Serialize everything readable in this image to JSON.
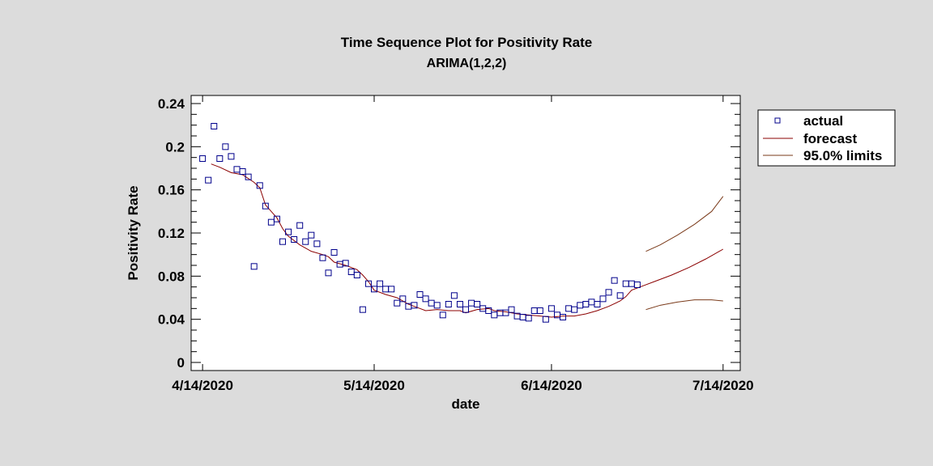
{
  "chart_data": {
    "type": "line",
    "title": "Time Sequence Plot for Positivity Rate",
    "subtitle": "ARIMA(1,2,2)",
    "xlabel": "date",
    "ylabel": "Positivity Rate",
    "x_start_date": "4/14/2020",
    "x_unit": "day",
    "xlim": [
      -2,
      94
    ],
    "ylim": [
      -0.0075,
      0.2475
    ],
    "x_ticks": [
      {
        "day": 0,
        "label": "4/14/2020"
      },
      {
        "day": 30,
        "label": "5/14/2020"
      },
      {
        "day": 61,
        "label": "6/14/2020"
      },
      {
        "day": 91,
        "label": "7/14/2020"
      }
    ],
    "y_ticks": [
      {
        "value": 0,
        "label": "0"
      },
      {
        "value": 0.04,
        "label": "0.04"
      },
      {
        "value": 0.08,
        "label": "0.08"
      },
      {
        "value": 0.12,
        "label": "0.12"
      },
      {
        "value": 0.16,
        "label": "0.16"
      },
      {
        "value": 0.2,
        "label": "0.2"
      },
      {
        "value": 0.24,
        "label": "0.24"
      }
    ],
    "grid": false,
    "legend_position": "right",
    "series": [
      {
        "name": "actual",
        "kind": "scatter",
        "color": "#00008b",
        "start_day": 0,
        "values": [
          0.189,
          0.169,
          0.219,
          0.189,
          0.2,
          0.191,
          0.179,
          0.177,
          0.172,
          0.089,
          0.164,
          0.145,
          0.13,
          0.133,
          0.112,
          0.121,
          0.114,
          0.127,
          0.112,
          0.118,
          0.11,
          0.097,
          0.083,
          0.102,
          0.091,
          0.092,
          0.084,
          0.081,
          0.049,
          0.073,
          0.068,
          0.073,
          0.068,
          0.068,
          0.055,
          0.059,
          0.052,
          0.053,
          0.063,
          0.059,
          0.055,
          0.053,
          0.044,
          0.054,
          0.062,
          0.054,
          0.049,
          0.055,
          0.054,
          0.05,
          0.048,
          0.044,
          0.046,
          0.046,
          0.049,
          0.043,
          0.042,
          0.041,
          0.048,
          0.048,
          0.04,
          0.05,
          0.044,
          0.042,
          0.05,
          0.049,
          0.053,
          0.054,
          0.056,
          0.054,
          0.059,
          0.065,
          0.076,
          0.062,
          0.073,
          0.073,
          0.072
        ]
      },
      {
        "name": "forecast",
        "kind": "line",
        "color": "#8b0000",
        "points": [
          [
            1.5,
            0.184
          ],
          [
            3,
            0.181
          ],
          [
            5,
            0.176
          ],
          [
            7,
            0.174
          ],
          [
            9,
            0.167
          ],
          [
            10,
            0.162
          ],
          [
            11,
            0.146
          ],
          [
            12,
            0.14
          ],
          [
            13,
            0.134
          ],
          [
            14,
            0.124
          ],
          [
            15,
            0.117
          ],
          [
            17,
            0.109
          ],
          [
            19,
            0.103
          ],
          [
            21,
            0.1
          ],
          [
            22,
            0.098
          ],
          [
            23,
            0.093
          ],
          [
            25,
            0.09
          ],
          [
            27,
            0.086
          ],
          [
            28,
            0.081
          ],
          [
            29,
            0.075
          ],
          [
            30,
            0.067
          ],
          [
            32,
            0.063
          ],
          [
            34,
            0.06
          ],
          [
            36,
            0.054
          ],
          [
            38,
            0.05
          ],
          [
            39,
            0.048
          ],
          [
            41,
            0.049
          ],
          [
            43,
            0.048
          ],
          [
            45,
            0.048
          ],
          [
            46,
            0.046
          ],
          [
            48,
            0.049
          ],
          [
            50,
            0.05
          ],
          [
            51,
            0.048
          ],
          [
            53,
            0.047
          ],
          [
            55,
            0.045
          ],
          [
            57,
            0.044
          ],
          [
            59,
            0.043
          ],
          [
            61,
            0.042
          ],
          [
            63,
            0.043
          ],
          [
            65,
            0.043
          ],
          [
            67,
            0.045
          ],
          [
            69,
            0.048
          ],
          [
            71,
            0.052
          ],
          [
            73,
            0.057
          ],
          [
            74,
            0.061
          ],
          [
            75,
            0.067
          ],
          [
            77,
            0.071
          ],
          [
            79,
            0.075
          ],
          [
            82,
            0.081
          ],
          [
            85,
            0.088
          ],
          [
            88,
            0.096
          ],
          [
            91,
            0.105
          ]
        ]
      },
      {
        "name": "95.0% limits",
        "kind": "line",
        "color": "#7a3a1a",
        "upper": [
          [
            77.5,
            0.103
          ],
          [
            80,
            0.109
          ],
          [
            83,
            0.118
          ],
          [
            86,
            0.128
          ],
          [
            89,
            0.14
          ],
          [
            91,
            0.154
          ]
        ],
        "lower": [
          [
            77.5,
            0.049
          ],
          [
            80,
            0.053
          ],
          [
            83,
            0.056
          ],
          [
            86,
            0.058
          ],
          [
            89,
            0.058
          ],
          [
            91,
            0.057
          ]
        ]
      }
    ]
  },
  "legend": {
    "items": [
      {
        "label": "actual",
        "symbol": "square",
        "color": "#00008b"
      },
      {
        "label": "forecast",
        "symbol": "line",
        "color": "#8b0000"
      },
      {
        "label": "95.0% limits",
        "symbol": "line",
        "color": "#7a3a1a"
      }
    ]
  }
}
